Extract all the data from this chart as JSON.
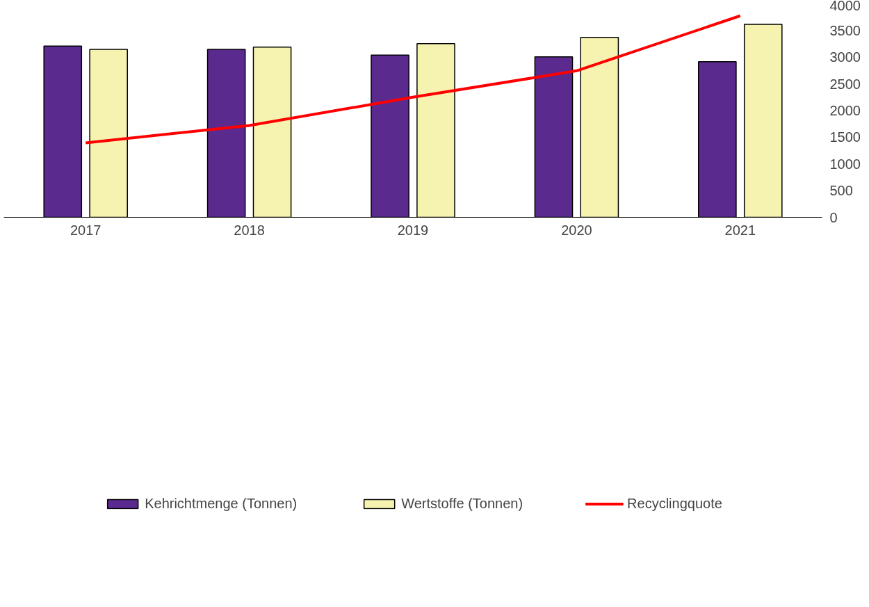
{
  "chart_data": {
    "type": "bar",
    "categories": [
      "2017",
      "2018",
      "2019",
      "2020",
      "2021"
    ],
    "series": [
      {
        "name": "Kehrichtmenge (Tonnen)",
        "color": "#5a2a8f",
        "values": [
          3210,
          3145,
          3040,
          3005,
          2915
        ]
      },
      {
        "name": "Wertstoffe (Tonnen)",
        "color": "#f6f2b0",
        "values": [
          3145,
          3190,
          3255,
          3370,
          3615
        ]
      },
      {
        "name": "Recyclingquote",
        "type": "line",
        "color": "#ff0000",
        "values": [
          1395,
          1720,
          2250,
          2745,
          3775
        ]
      }
    ],
    "ylim": [
      0,
      4000
    ],
    "yticks": [
      0,
      500,
      1000,
      1500,
      2000,
      2500,
      3000,
      3500,
      4000
    ],
    "grid": false,
    "legend": "bottom",
    "marker": "none",
    "line_style": "solid"
  }
}
